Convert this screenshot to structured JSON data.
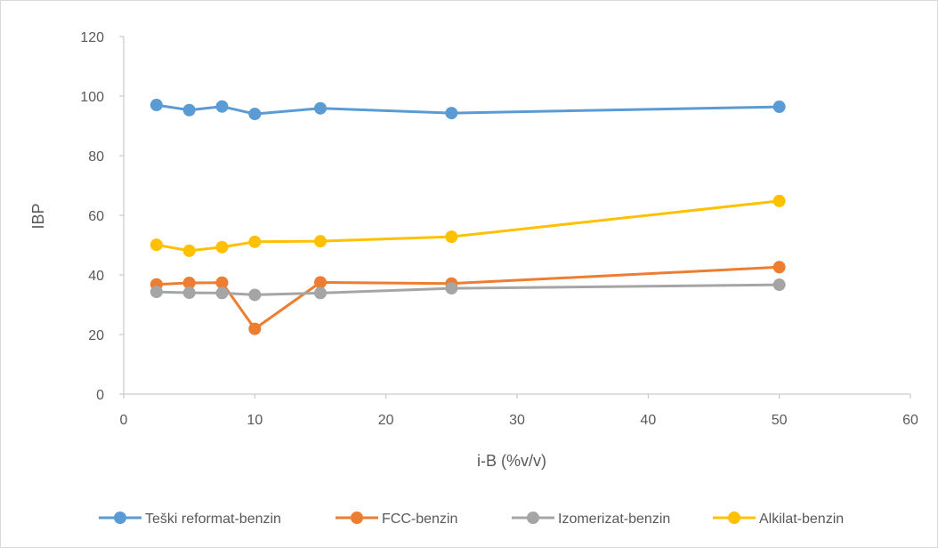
{
  "chart_data": {
    "type": "line",
    "title": "",
    "xlabel": "i-B (%v/v)",
    "ylabel": "IBP",
    "xlim": [
      0,
      60
    ],
    "ylim": [
      0,
      120
    ],
    "x_ticks": [
      0,
      10,
      20,
      30,
      40,
      50,
      60
    ],
    "y_ticks": [
      0,
      20,
      40,
      60,
      80,
      100,
      120
    ],
    "grid": false,
    "legend_position": "bottom",
    "x": [
      2.5,
      5,
      7.5,
      10,
      15,
      25,
      50
    ],
    "series": [
      {
        "name": "Teški reformat-benzin",
        "color": "#5b9bd5",
        "values": [
          97.0,
          95.3,
          96.5,
          94.0,
          95.9,
          94.3,
          96.4
        ]
      },
      {
        "name": "FCC-benzin",
        "color": "#ed7d31",
        "values": [
          36.8,
          37.3,
          37.4,
          21.9,
          37.5,
          37.1,
          42.6
        ]
      },
      {
        "name": "Izomerizat-benzin",
        "color": "#a5a5a5",
        "values": [
          34.3,
          34.0,
          33.9,
          33.3,
          33.9,
          35.5,
          36.7
        ]
      },
      {
        "name": "Alkilat-benzin",
        "color": "#ffc000",
        "values": [
          50.1,
          48.1,
          49.3,
          51.1,
          51.3,
          52.8,
          64.8
        ]
      }
    ]
  }
}
